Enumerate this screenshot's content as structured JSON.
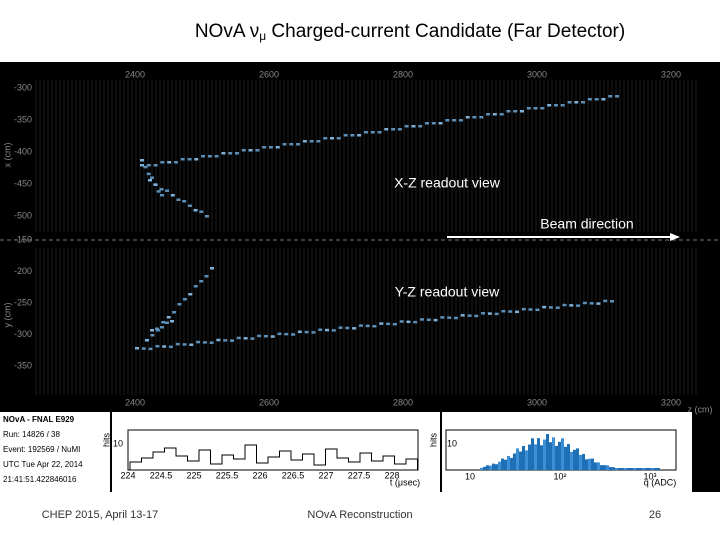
{
  "header": {
    "title_main": "NOvA ν",
    "title_sub": "μ",
    "title_rest": " Charged-current  Candidate (Far Detector)"
  },
  "display": {
    "top_ticks": [
      "2400",
      "2600",
      "2800",
      "3000",
      "3200"
    ],
    "xz_ticks": [
      "-300",
      "-350",
      "-400",
      "-450",
      "-500"
    ],
    "xz_axis": "x (cm)",
    "yz_ticks": [
      "-150",
      "-200",
      "-250",
      "-300",
      "-350"
    ],
    "yz_axis": "y (cm)",
    "bottom_ticks": [
      "2400",
      "2600",
      "2800",
      "3000",
      "3200"
    ],
    "z_axis": "z (cm)",
    "xz_label": "X-Z readout view",
    "beam_label": "Beam direction",
    "yz_label": "Y-Z readout view"
  },
  "info": {
    "lines": [
      "NOvA - FNAL E929",
      "Run: 14826 / 38",
      "Event: 192569 / NuMI",
      "UTC Tue Apr 22, 2014",
      "21:41:51.422846016"
    ]
  },
  "time_hist": {
    "ylabel": "hits",
    "ytick": "10",
    "ticks": [
      "224",
      "224.5",
      "225",
      "225.5",
      "226",
      "226.5",
      "227",
      "227.5",
      "228"
    ],
    "xlabel": "t (μsec)"
  },
  "adc_hist": {
    "ylabel": "hits",
    "ytick": "10",
    "ticks": [
      "10",
      "10²",
      "10³"
    ],
    "xlabel": "q (ADC)"
  },
  "footer": {
    "left": "CHEP 2015,  April 13-17",
    "center": "NOvA Reconstruction",
    "page": "26"
  }
}
